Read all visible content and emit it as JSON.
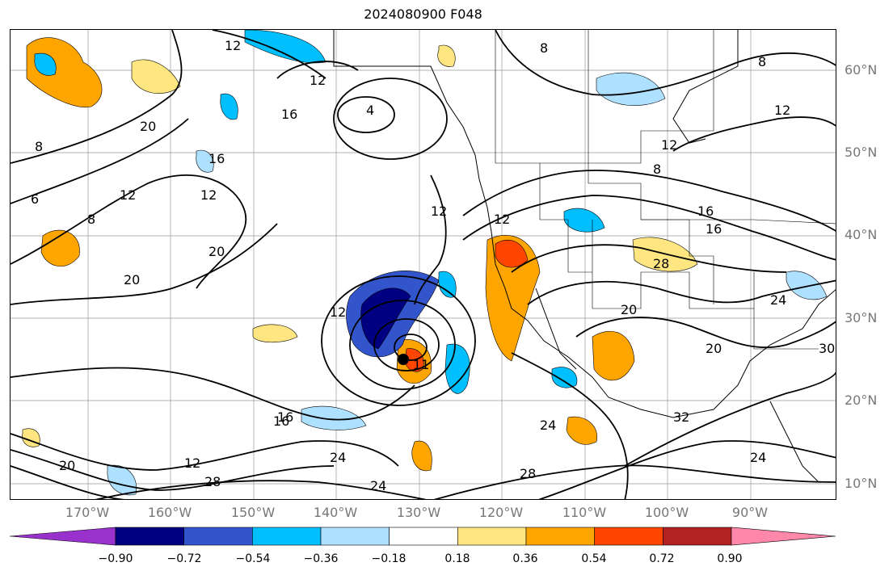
{
  "title": "2024080900 F048",
  "lat_labels": [
    "60°N",
    "50°N",
    "40°N",
    "30°N",
    "20°N",
    "10°N"
  ],
  "lon_labels": [
    "170°W",
    "160°W",
    "150°W",
    "140°W",
    "130°W",
    "120°W",
    "110°W",
    "100°W",
    "90°W"
  ],
  "colorbar": {
    "colors": [
      "#9932cc",
      "#000080",
      "#3355cc",
      "#00bfff",
      "#aee0ff",
      "#ffffff",
      "#ffe680",
      "#ffa500",
      "#ff4500",
      "#b22222",
      "#ff88aa"
    ],
    "ticks": [
      "−0.90",
      "−0.72",
      "−0.54",
      "−0.36",
      "−0.18",
      "0.18",
      "0.36",
      "0.54",
      "0.72",
      "0.90"
    ]
  },
  "contour_labels": [
    "12",
    "8",
    "20",
    "16",
    "12",
    "4",
    "16",
    "12",
    "8",
    "8",
    "12",
    "6",
    "16",
    "12",
    "20",
    "16",
    "12",
    "20",
    "8",
    "12",
    "12",
    "8",
    "16",
    "12",
    "28",
    "20",
    "24",
    "20",
    "30",
    "12",
    "11",
    "16",
    "24",
    "24",
    "28",
    "32",
    "24",
    "28",
    "20",
    "24"
  ]
}
